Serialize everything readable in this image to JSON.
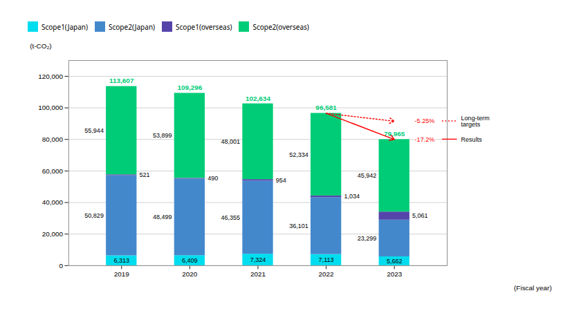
{
  "chart_data": {
    "type": "bar",
    "stacked": true,
    "xlabel": "(Fiscal year)",
    "ylabel": "(t-CO₂)",
    "categories": [
      "2019",
      "2020",
      "2021",
      "2022",
      "2023"
    ],
    "series": [
      {
        "name": "Scope1(Japan)",
        "color": "#00ddee",
        "values": [
          6313,
          6409,
          7324,
          7113,
          5662
        ],
        "value_labels": [
          "6,313",
          "6,409",
          "7,324",
          "7,113",
          "5,662"
        ]
      },
      {
        "name": "Scope2(Japan)",
        "color": "#4488cc",
        "values": [
          50829,
          48499,
          46355,
          36101,
          23299
        ],
        "value_labels": [
          "50,829",
          "48,499",
          "46,355",
          "36,101",
          "23,299"
        ]
      },
      {
        "name": "Scope1(overseas)",
        "color": "#5544aa",
        "values": [
          521,
          490,
          954,
          1034,
          5061
        ],
        "value_labels": [
          "521",
          "490",
          "954",
          "1,034",
          "5,061"
        ]
      },
      {
        "name": "Scope2(overseas)",
        "color": "#00cc77",
        "values": [
          55944,
          53899,
          48001,
          52334,
          45942
        ],
        "value_labels": [
          "55,944",
          "53,899",
          "48,001",
          "52,334",
          "45,942"
        ]
      }
    ],
    "data_labels": true,
    "totals": {
      "values": [
        113607,
        109296,
        102634,
        96581,
        79965
      ],
      "value_labels": [
        "113,607",
        "109,296",
        "102,634",
        "96,581",
        "79,965"
      ],
      "color": "#00cc77"
    },
    "annotations": [
      {
        "text": "-5.25%",
        "label": "Long-term\ntargets",
        "x_from": "2022",
        "y_from": 96581,
        "x_to": "2023",
        "y_to": 91510.4975,
        "color": "red",
        "line_style": "dotted"
      },
      {
        "text": "-17.2%",
        "label": "Results",
        "x_from": "2022",
        "y_from": 96581,
        "x_to": "2023",
        "y_to": 79965,
        "color": "red",
        "line_style": "solid"
      }
    ],
    "ylim": [
      0,
      130000
    ],
    "yticks": [
      0,
      {
        "value": 20000,
        "label": "20,000"
      },
      {
        "value": 40000,
        "label": "40,000"
      },
      {
        "value": 60000,
        "label": "60,000"
      },
      {
        "value": 80000,
        "label": "80,000"
      },
      {
        "value": 100000,
        "label": "100,000"
      },
      {
        "value": 120000,
        "label": "120,000"
      }
    ],
    "grid": true,
    "legend": "top"
  }
}
